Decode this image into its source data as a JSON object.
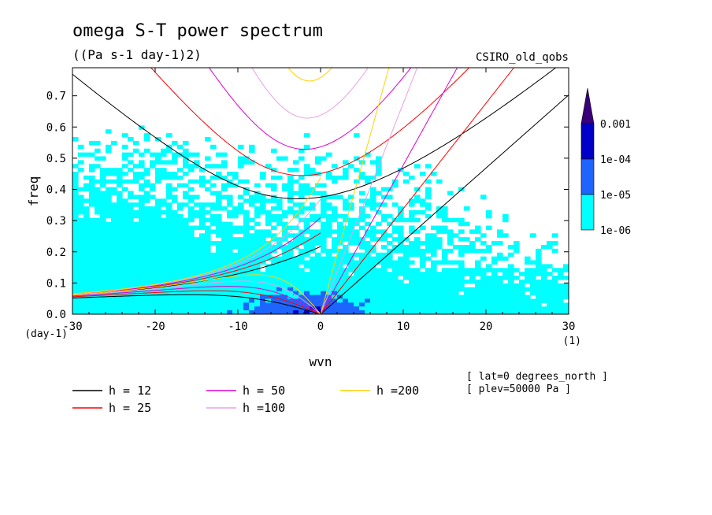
{
  "chart_data": {
    "type": "contour",
    "title": "omega S-T power spectrum",
    "subtitle": "((Pa s-1 day-1)2)",
    "dataset": "CSIRO_old_qobs",
    "xlabel": "wvn",
    "ylabel": "freq",
    "x_unit": "(1)",
    "y_unit": "(day-1)",
    "xlim": [
      -30,
      30
    ],
    "ylim": [
      0,
      0.79
    ],
    "x_ticks": [
      -30,
      -20,
      -10,
      0,
      10,
      20,
      30
    ],
    "x_tick_labels": [
      "-30",
      "-20",
      "-10",
      "0",
      "10",
      "20",
      "30"
    ],
    "y_ticks": [
      0,
      0.1,
      0.2,
      0.3,
      0.4,
      0.5,
      0.6,
      0.7
    ],
    "y_tick_labels": [
      "0.0",
      "0.1",
      "0.2",
      "0.3",
      "0.4",
      "0.5",
      "0.6",
      "0.7"
    ],
    "colorbar": {
      "labels": [
        "0.001",
        "1e-04",
        "1e-05",
        "1e-06"
      ],
      "colors": [
        "#3a007a",
        "#0000c8",
        "#1e64ff",
        "#00ffff"
      ]
    },
    "series": [
      {
        "name": "h = 12",
        "h": 12,
        "color": "#000000"
      },
      {
        "name": "h = 25",
        "h": 25,
        "color": "#ff0000"
      },
      {
        "name": "h = 50",
        "h": 50,
        "color": "#e000d0"
      },
      {
        "name": "h =100",
        "h": 100,
        "color": "#e8a0e8"
      },
      {
        "name": "h =200",
        "h": 200,
        "color": "#ffd200"
      }
    ],
    "annotations": [
      "[ lat=0 degrees_north ]",
      "[ plev=50000 Pa ]"
    ],
    "legend_placement": "bottom-left"
  }
}
